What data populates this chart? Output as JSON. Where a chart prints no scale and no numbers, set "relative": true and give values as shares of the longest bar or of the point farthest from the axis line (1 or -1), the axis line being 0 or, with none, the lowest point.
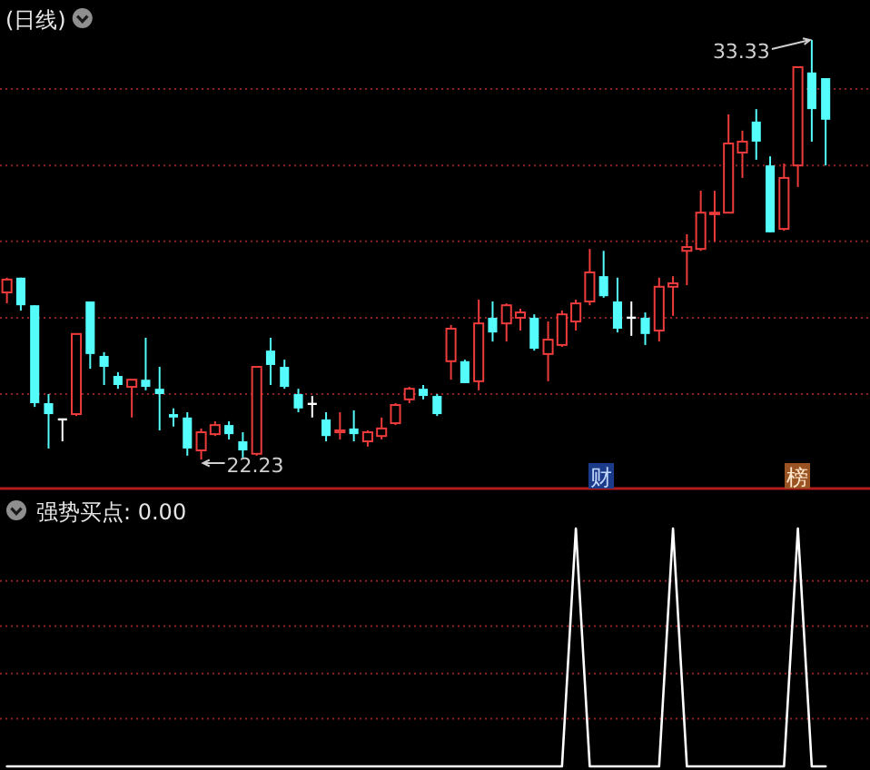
{
  "chart_data": [
    {
      "type": "candlestick",
      "title": "(日线)",
      "categories": [
        null,
        null,
        null,
        null,
        null,
        null,
        null,
        null,
        null,
        null,
        null,
        null,
        null,
        null,
        null,
        null,
        null,
        null,
        null,
        null,
        null,
        null,
        null,
        null,
        null,
        null,
        null,
        null,
        null,
        null,
        null,
        null,
        null,
        null,
        null,
        null,
        null,
        null,
        null,
        null,
        null,
        null,
        null,
        null,
        null,
        null,
        null,
        null,
        null,
        null,
        null,
        null,
        null,
        null,
        null,
        null,
        null,
        null,
        null,
        null
      ],
      "ohlc": [
        [
          26.65,
          27.04,
          26.36,
          26.99
        ],
        [
          27.04,
          27.04,
          26.17,
          26.31
        ],
        [
          26.31,
          26.31,
          23.62,
          23.72
        ],
        [
          23.72,
          23.96,
          22.52,
          23.43
        ],
        [
          23.29,
          23.29,
          22.71,
          23.29
        ],
        [
          23.43,
          25.55,
          23.38,
          25.55
        ],
        [
          26.41,
          26.41,
          24.63,
          25.02
        ],
        [
          24.97,
          25.07,
          24.2,
          24.68
        ],
        [
          24.44,
          24.54,
          24.1,
          24.2
        ],
        [
          24.15,
          24.34,
          23.34,
          24.34
        ],
        [
          24.34,
          25.45,
          24.06,
          24.15
        ],
        [
          24.1,
          24.68,
          23.0,
          23.96
        ],
        [
          23.43,
          23.58,
          23.1,
          23.34
        ],
        [
          23.34,
          23.48,
          22.33,
          22.52
        ],
        [
          22.47,
          23.05,
          22.23,
          22.95
        ],
        [
          22.9,
          23.24,
          22.85,
          23.14
        ],
        [
          23.14,
          23.24,
          22.76,
          22.9
        ],
        [
          22.71,
          22.95,
          22.28,
          22.47
        ],
        [
          22.38,
          24.68,
          22.33,
          24.68
        ],
        [
          25.11,
          25.45,
          24.2,
          24.73
        ],
        [
          24.68,
          24.87,
          24.1,
          24.15
        ],
        [
          23.96,
          24.1,
          23.48,
          23.58
        ],
        [
          23.7,
          23.91,
          23.34,
          23.7
        ],
        [
          23.29,
          23.48,
          22.71,
          22.85
        ],
        [
          22.95,
          23.48,
          22.76,
          23.0
        ],
        [
          23.05,
          23.53,
          22.71,
          22.9
        ],
        [
          22.71,
          23.0,
          22.57,
          22.95
        ],
        [
          22.85,
          23.34,
          22.76,
          23.05
        ],
        [
          23.19,
          23.72,
          23.14,
          23.67
        ],
        [
          23.82,
          24.15,
          23.72,
          24.1
        ],
        [
          24.1,
          24.2,
          23.82,
          23.91
        ],
        [
          23.91,
          23.96,
          23.38,
          23.43
        ],
        [
          24.83,
          25.79,
          24.34,
          25.69
        ],
        [
          24.83,
          24.87,
          24.25,
          24.25
        ],
        [
          24.3,
          26.46,
          24.06,
          25.83
        ],
        [
          25.98,
          26.41,
          25.35,
          25.59
        ],
        [
          25.83,
          26.36,
          25.35,
          26.31
        ],
        [
          25.98,
          26.22,
          25.64,
          26.12
        ],
        [
          25.98,
          26.07,
          25.11,
          25.16
        ],
        [
          25.02,
          25.88,
          24.3,
          25.4
        ],
        [
          25.26,
          26.17,
          25.21,
          26.07
        ],
        [
          25.88,
          26.46,
          25.64,
          26.36
        ],
        [
          26.41,
          27.8,
          26.31,
          27.18
        ],
        [
          27.08,
          27.75,
          26.51,
          26.55
        ],
        [
          26.41,
          27.04,
          25.59,
          25.69
        ],
        [
          25.98,
          26.41,
          25.5,
          25.98
        ],
        [
          25.98,
          26.12,
          25.26,
          25.55
        ],
        [
          25.64,
          27.04,
          25.35,
          26.8
        ],
        [
          26.8,
          27.08,
          26.03,
          26.89
        ],
        [
          27.75,
          28.19,
          26.84,
          27.85
        ],
        [
          27.8,
          29.34,
          27.75,
          28.76
        ],
        [
          28.72,
          29.34,
          27.99,
          28.76
        ],
        [
          28.76,
          31.36,
          28.76,
          30.59
        ],
        [
          30.35,
          30.93,
          29.68,
          30.64
        ],
        [
          31.17,
          31.5,
          30.16,
          30.64
        ],
        [
          30.01,
          30.25,
          28.24,
          28.24
        ],
        [
          28.33,
          30.06,
          28.28,
          29.68
        ],
        [
          30.01,
          32.61,
          29.44,
          32.61
        ],
        [
          32.47,
          33.33,
          30.64,
          31.5
        ],
        [
          32.32,
          32.32,
          30.01,
          31.22
        ]
      ],
      "colors": [
        "#ee3b3b",
        "#54fcfc",
        "#54fcfc",
        "#54fcfc",
        "#ffffff",
        "#ee3b3b",
        "#54fcfc",
        "#54fcfc",
        "#54fcfc",
        "#ee3b3b",
        "#54fcfc",
        "#54fcfc",
        "#54fcfc",
        "#54fcfc",
        "#ee3b3b",
        "#ee3b3b",
        "#54fcfc",
        "#54fcfc",
        "#ee3b3b",
        "#54fcfc",
        "#54fcfc",
        "#54fcfc",
        "#ffffff",
        "#54fcfc",
        "#ee3b3b",
        "#54fcfc",
        "#ee3b3b",
        "#ee3b3b",
        "#ee3b3b",
        "#ee3b3b",
        "#54fcfc",
        "#54fcfc",
        "#ee3b3b",
        "#54fcfc",
        "#ee3b3b",
        "#54fcfc",
        "#ee3b3b",
        "#ee3b3b",
        "#54fcfc",
        "#ee3b3b",
        "#ee3b3b",
        "#ee3b3b",
        "#ee3b3b",
        "#54fcfc",
        "#54fcfc",
        "#ffffff",
        "#54fcfc",
        "#ee3b3b",
        "#ee3b3b",
        "#ee3b3b",
        "#ee3b3b",
        "#ee3b3b",
        "#ee3b3b",
        "#ee3b3b",
        "#54fcfc",
        "#54fcfc",
        "#ee3b3b",
        "#ee3b3b",
        "#54fcfc",
        "#54fcfc"
      ],
      "yticks": [
        {
          "value": 23.96,
          "label": null
        },
        {
          "value": 25.98,
          "label": null
        },
        {
          "value": 28.0,
          "label": null
        },
        {
          "value": 30.01,
          "label": null
        },
        {
          "value": 32.03,
          "label": null
        }
      ],
      "grid": "y",
      "annotations": [
        "33.33",
        "22.23",
        "财",
        "榜"
      ]
    },
    {
      "type": "line",
      "title": "强势买点: 0.00",
      "categories": [
        null,
        null,
        null,
        null,
        null,
        null,
        null,
        null,
        null,
        null,
        null,
        null,
        null,
        null,
        null,
        null,
        null,
        null,
        null,
        null,
        null,
        null,
        null,
        null,
        null,
        null,
        null,
        null,
        null,
        null,
        null,
        null,
        null,
        null,
        null,
        null,
        null,
        null,
        null,
        null,
        null,
        null,
        null,
        null,
        null,
        null,
        null,
        null,
        null,
        null,
        null,
        null,
        null,
        null,
        null,
        null,
        null,
        null,
        null,
        null
      ],
      "series": [
        {
          "color": "#ffffff",
          "values": [
            0,
            0,
            0,
            0,
            0,
            0,
            0,
            0,
            0,
            0,
            0,
            0,
            0,
            0,
            0,
            0,
            0,
            0,
            0,
            0,
            0,
            0,
            0,
            0,
            0,
            0,
            0,
            0,
            0,
            0,
            0,
            0,
            0,
            0,
            0,
            0,
            0,
            0,
            0,
            0,
            0,
            1,
            0,
            0,
            0,
            0,
            0,
            0,
            1,
            0,
            0,
            0,
            0,
            0,
            0,
            0,
            0,
            1,
            0,
            0
          ]
        }
      ],
      "relative": true,
      "ref_lines": [
        {
          "axis": "y",
          "value": 0.2,
          "color": "#8e2222",
          "line_style": "dotted"
        },
        {
          "axis": "y",
          "value": 0.39,
          "color": "#8e2222",
          "line_style": "dotted"
        },
        {
          "axis": "y",
          "value": 0.59,
          "color": "#8e2222",
          "line_style": "dotted"
        },
        {
          "axis": "y",
          "value": 0.78,
          "color": "#8e2222",
          "line_style": "dotted"
        }
      ]
    }
  ]
}
